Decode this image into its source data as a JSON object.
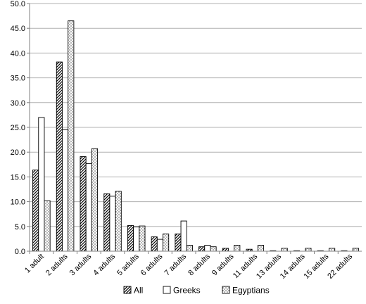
{
  "chart_data": {
    "type": "bar",
    "categories": [
      "1 adult",
      "2 adults",
      "3 adults",
      "4 adults",
      "5 adults",
      "6 adults",
      "7 adults",
      "8 adults",
      "9 adults",
      "11 adults",
      "13 adults",
      "14 adults",
      "15 adults",
      "22 adults"
    ],
    "series": [
      {
        "name": "All",
        "pattern": "diagonal-hatch",
        "values": [
          16.4,
          38.2,
          19.1,
          11.6,
          5.2,
          2.9,
          3.5,
          0.9,
          0.6,
          0.4,
          0.1,
          0.1,
          0.1,
          0.1
        ]
      },
      {
        "name": "Greeks",
        "pattern": "white",
        "values": [
          27.0,
          24.5,
          17.7,
          11.1,
          4.9,
          2.4,
          6.1,
          1.2,
          0.0,
          0.0,
          0.0,
          0.0,
          0.0,
          0.0
        ]
      },
      {
        "name": "Egyptians",
        "pattern": "dots",
        "values": [
          10.2,
          46.5,
          20.7,
          12.1,
          5.1,
          3.5,
          1.2,
          0.9,
          1.2,
          1.2,
          0.6,
          0.6,
          0.6,
          0.6
        ]
      }
    ],
    "ylim": [
      0,
      50
    ],
    "yticks": [
      "0.0",
      "5.0",
      "10.0",
      "15.0",
      "20.0",
      "25.0",
      "30.0",
      "35.0",
      "40.0",
      "45.0",
      "50.0"
    ],
    "grid": true,
    "legend_position": "bottom-center",
    "colors": {
      "bar_stroke": "#000000",
      "grid": "#b0b0b0",
      "axis": "#808080",
      "hatch": "#000000",
      "dots": "#000000"
    }
  }
}
